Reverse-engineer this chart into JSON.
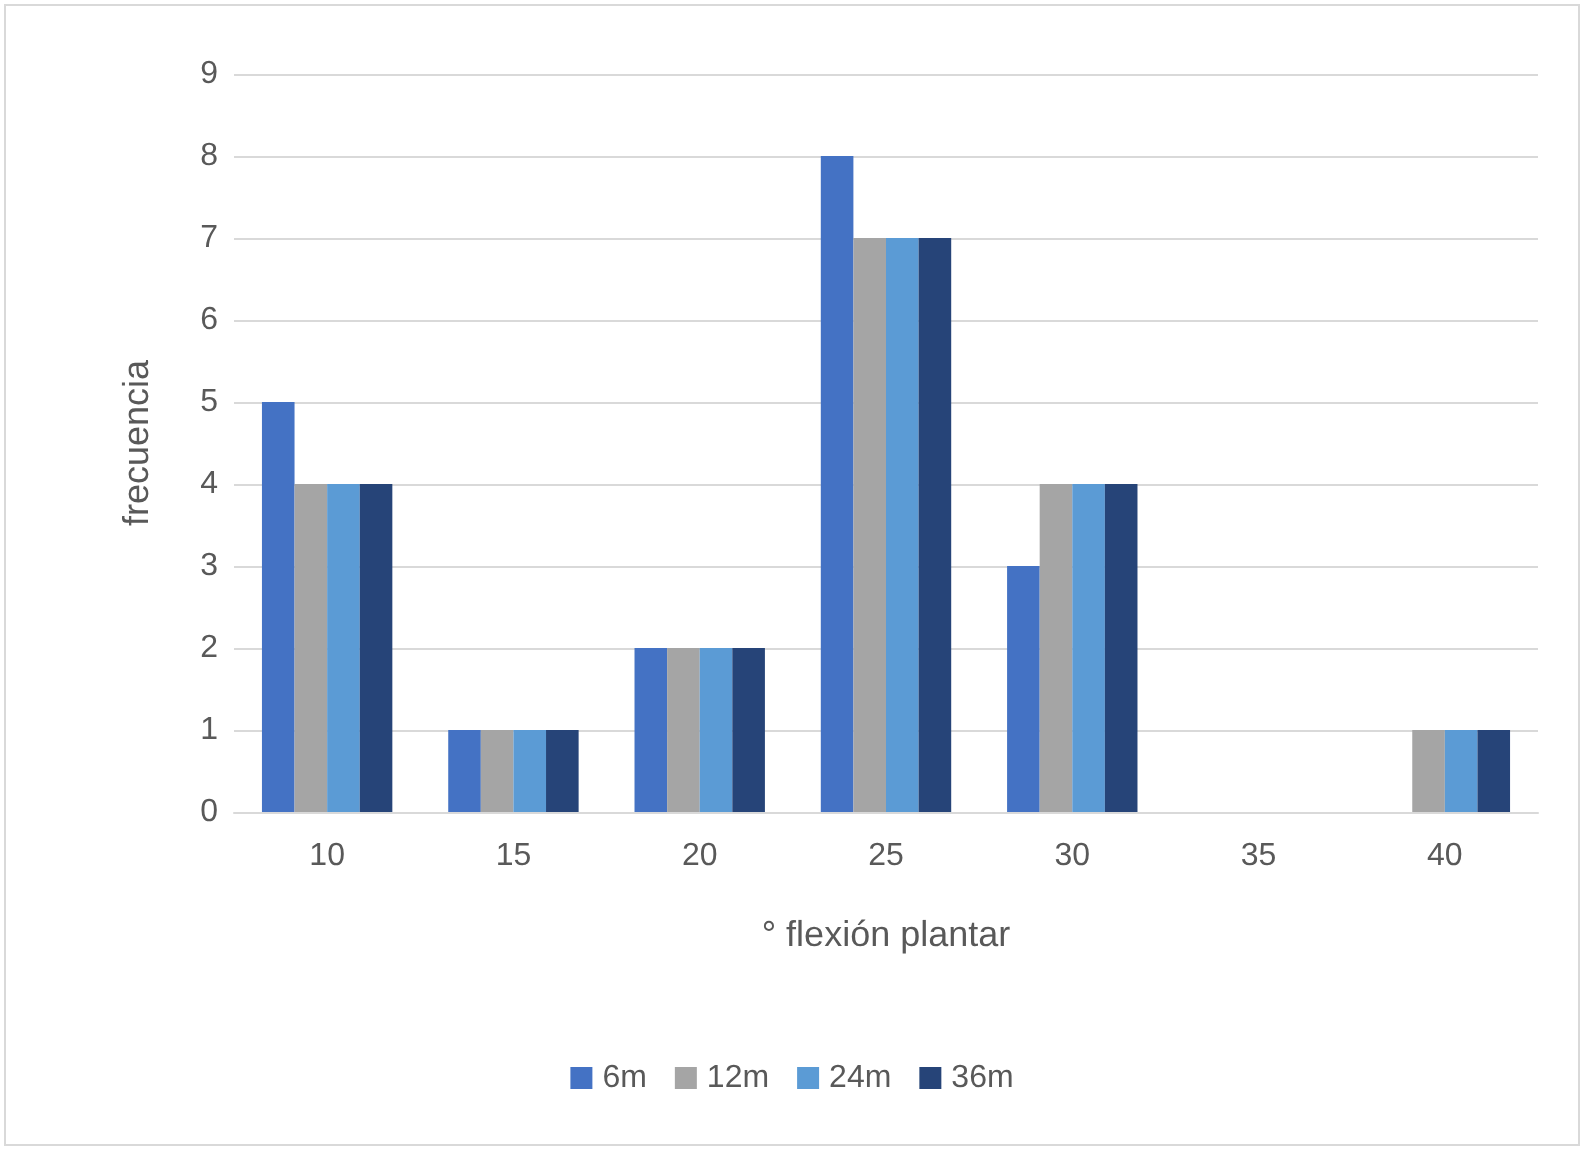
{
  "chart_data": {
    "type": "bar",
    "xlabel": "° flexión plantar",
    "ylabel": "frecuencia",
    "categories": [
      "10",
      "15",
      "20",
      "25",
      "30",
      "35",
      "40"
    ],
    "series": [
      {
        "name": "6m",
        "color": "#4472c4",
        "values": [
          5,
          1,
          2,
          8,
          3,
          0,
          0
        ]
      },
      {
        "name": "12m",
        "color": "#a5a5a5",
        "values": [
          4,
          1,
          2,
          7,
          4,
          0,
          1
        ]
      },
      {
        "name": "24m",
        "color": "#5b9bd5",
        "values": [
          4,
          1,
          2,
          7,
          4,
          0,
          1
        ]
      },
      {
        "name": "36m",
        "color": "#264478",
        "values": [
          4,
          1,
          2,
          7,
          4,
          0,
          1
        ]
      }
    ],
    "ylim": [
      0,
      9
    ],
    "yticks": [
      0,
      1,
      2,
      3,
      4,
      5,
      6,
      7,
      8,
      9
    ],
    "grid": "y",
    "legend": "bottom"
  }
}
